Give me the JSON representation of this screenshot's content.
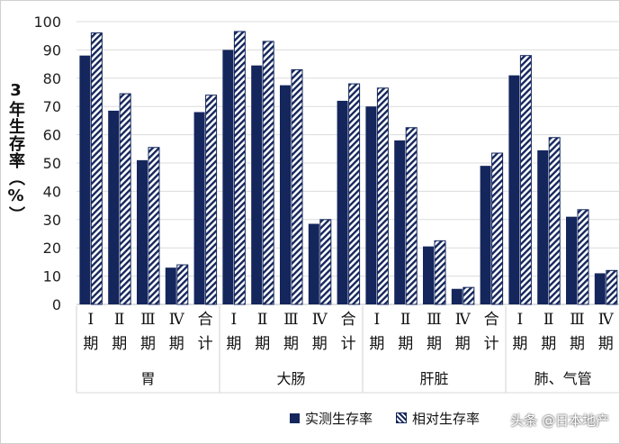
{
  "chart_data": {
    "type": "bar",
    "ylabel": "3年生存率（%）",
    "ylim": [
      0,
      100
    ],
    "yticks": [
      0,
      10,
      20,
      30,
      40,
      50,
      60,
      70,
      80,
      90,
      100
    ],
    "grid": true,
    "legend_placement": "bottom",
    "colors": {
      "actual": "#14265c",
      "relative": "#14265c"
    },
    "groups": [
      {
        "name": "胃",
        "categories": [
          "Ⅰ期",
          "Ⅱ期",
          "Ⅲ期",
          "Ⅳ期",
          "合计"
        ]
      },
      {
        "name": "大肠",
        "categories": [
          "Ⅰ期",
          "Ⅱ期",
          "Ⅲ期",
          "Ⅳ期",
          "合计"
        ]
      },
      {
        "name": "肝脏",
        "categories": [
          "Ⅰ期",
          "Ⅱ期",
          "Ⅲ期",
          "Ⅳ期",
          "合计"
        ]
      },
      {
        "name": "肺、气管",
        "categories": [
          "Ⅰ期",
          "Ⅱ期",
          "Ⅲ期",
          "Ⅳ期"
        ]
      }
    ],
    "series": [
      {
        "name": "实测生存率",
        "pattern": "solid",
        "values": [
          88,
          68.5,
          51,
          13,
          68,
          90,
          84.5,
          77.5,
          28.5,
          72,
          70,
          58,
          20.5,
          5.5,
          49,
          81,
          54.5,
          31,
          11
        ]
      },
      {
        "name": "相对生存率",
        "pattern": "hatched",
        "values": [
          96,
          74.5,
          55.5,
          14,
          74,
          96.5,
          93,
          83,
          30,
          78,
          76.5,
          62.5,
          22.5,
          6,
          53.5,
          88,
          59,
          33.5,
          12
        ]
      }
    ]
  },
  "watermark": "头条 @日本地产"
}
